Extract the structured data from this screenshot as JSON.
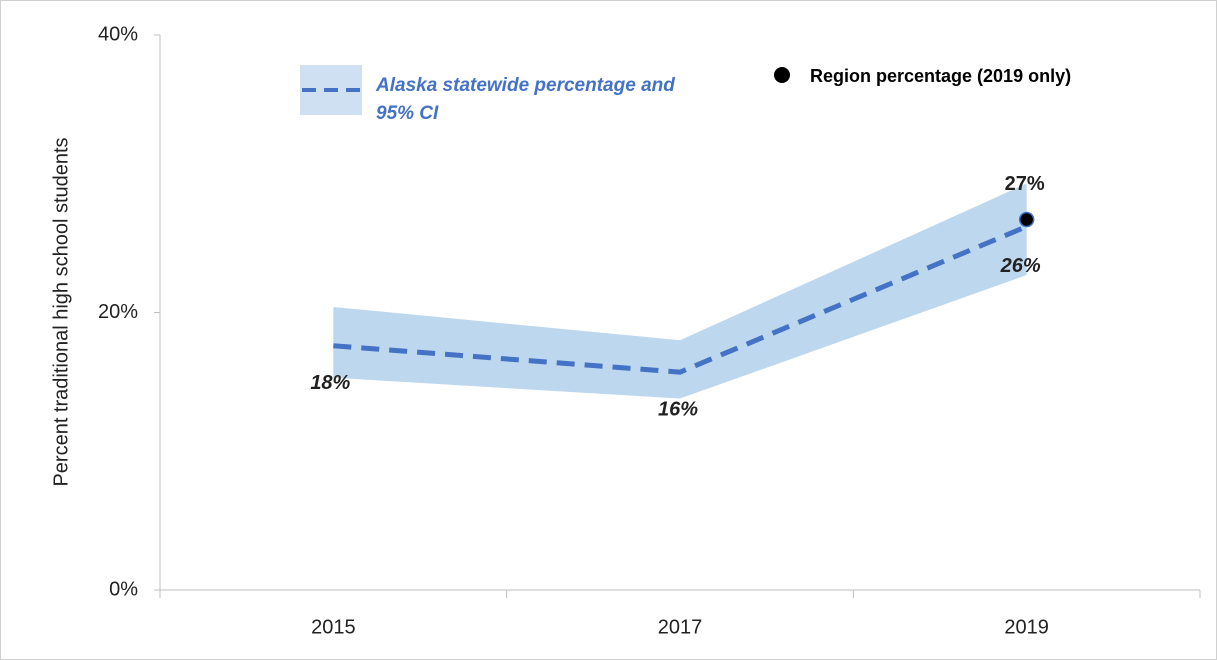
{
  "chart_data": {
    "type": "line",
    "y_label": "Percent traditional high school students",
    "categories": [
      "2015",
      "2017",
      "2019"
    ],
    "ylim": [
      0,
      40
    ],
    "yticks": [
      {
        "value": 0,
        "label": "0%"
      },
      {
        "value": 20,
        "label": "20%"
      },
      {
        "value": 40,
        "label": "40%"
      }
    ],
    "grid": false,
    "series": [
      {
        "name": "Alaska statewide percentage and 95% CI",
        "color": "#4472c4",
        "band_color": "#bdd7ee",
        "dashed": true,
        "values": [
          17.6,
          15.7,
          26.2
        ],
        "value_labels": [
          "18%",
          "16%",
          "26%"
        ],
        "ci_lower": [
          15.3,
          13.8,
          22.7
        ],
        "ci_upper": [
          20.4,
          18.0,
          29.3
        ]
      },
      {
        "name": "Region percentage (2019 only)",
        "type": "scatter",
        "color": "#000000",
        "values": [
          null,
          null,
          26.7
        ],
        "value_labels": [
          null,
          null,
          "27%"
        ]
      }
    ]
  }
}
